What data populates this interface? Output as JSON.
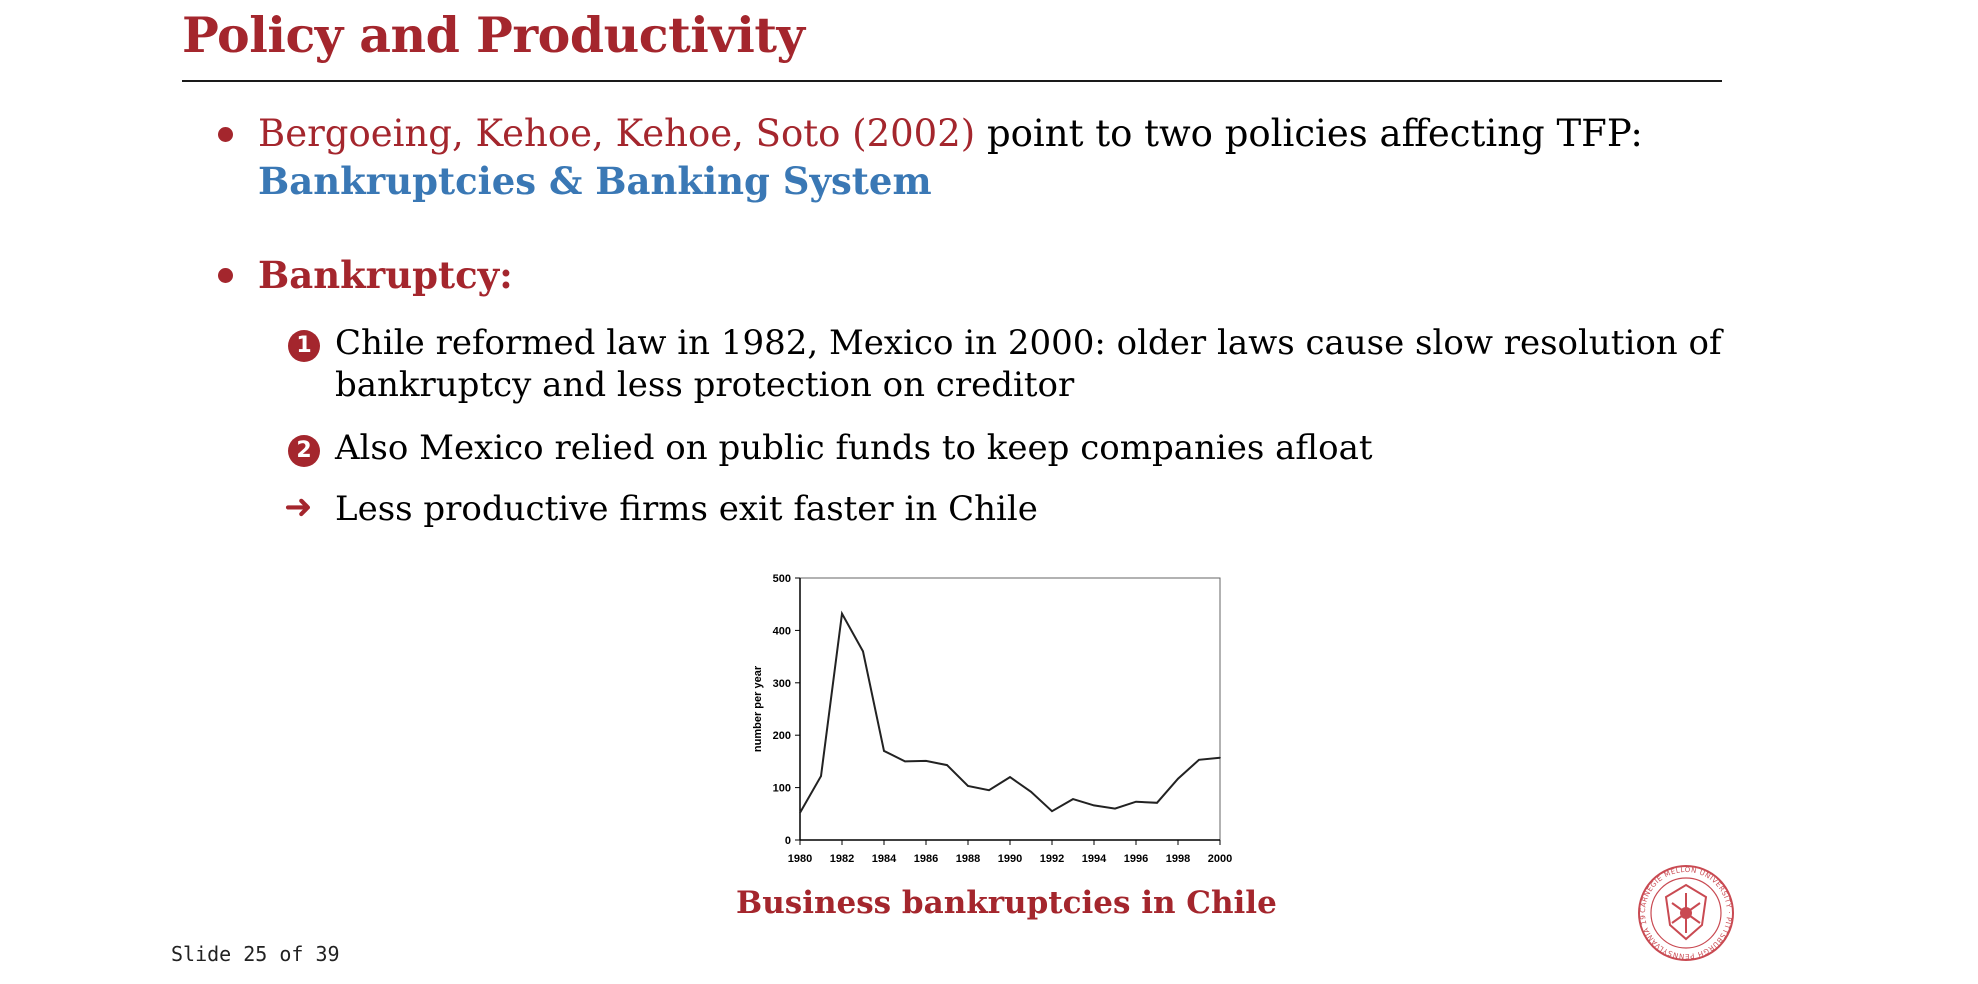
{
  "slide": {
    "title": "Policy and Productivity",
    "bullet1": {
      "authors": "Bergoeing, Kehoe, Kehoe, Soto (2002)",
      "text": " point to two policies affecting TFP:",
      "highlight": "Bankruptcies & Banking System"
    },
    "bullet2": {
      "label": "Bankruptcy:",
      "items": [
        {
          "marker": "1",
          "line1": "Chile reformed law in 1982, Mexico in 2000: older laws cause slow resolution of",
          "line2": "bankruptcy and less protection on creditor"
        },
        {
          "marker": "2",
          "line1": "Also Mexico relied on public funds to keep companies afloat"
        },
        {
          "marker": "➜",
          "line1": "Less productive firms exit faster in Chile"
        }
      ]
    },
    "caption": "Business bankruptcies in Chile",
    "footer": "Slide 25 of 39",
    "seal_text": "CARNEGIE MELLON UNIVERSITY · PITTSBURGH PENNSYLVANIA 1900"
  },
  "colors": {
    "accent": "#a4262d",
    "highlight": "#3a78b5"
  },
  "chart_data": {
    "type": "line",
    "x": [
      1980,
      1981,
      1982,
      1983,
      1984,
      1985,
      1986,
      1987,
      1988,
      1989,
      1990,
      1991,
      1992,
      1993,
      1994,
      1995,
      1996,
      1997,
      1998,
      1999,
      2000
    ],
    "values": [
      52,
      122,
      432,
      360,
      170,
      150,
      151,
      143,
      103,
      95,
      120,
      92,
      55,
      78,
      66,
      60,
      73,
      71,
      117,
      153,
      157
    ],
    "xticks": [
      "1980",
      "1982",
      "1984",
      "1986",
      "1988",
      "1990",
      "1992",
      "1994",
      "1996",
      "1998",
      "2000"
    ],
    "yticks": [
      "0",
      "100",
      "200",
      "300",
      "400",
      "500"
    ],
    "xlim": [
      1980,
      2000
    ],
    "ylim": [
      0,
      500
    ],
    "ylabel": "number per year",
    "xlabel": "",
    "title": "",
    "grid": false
  }
}
